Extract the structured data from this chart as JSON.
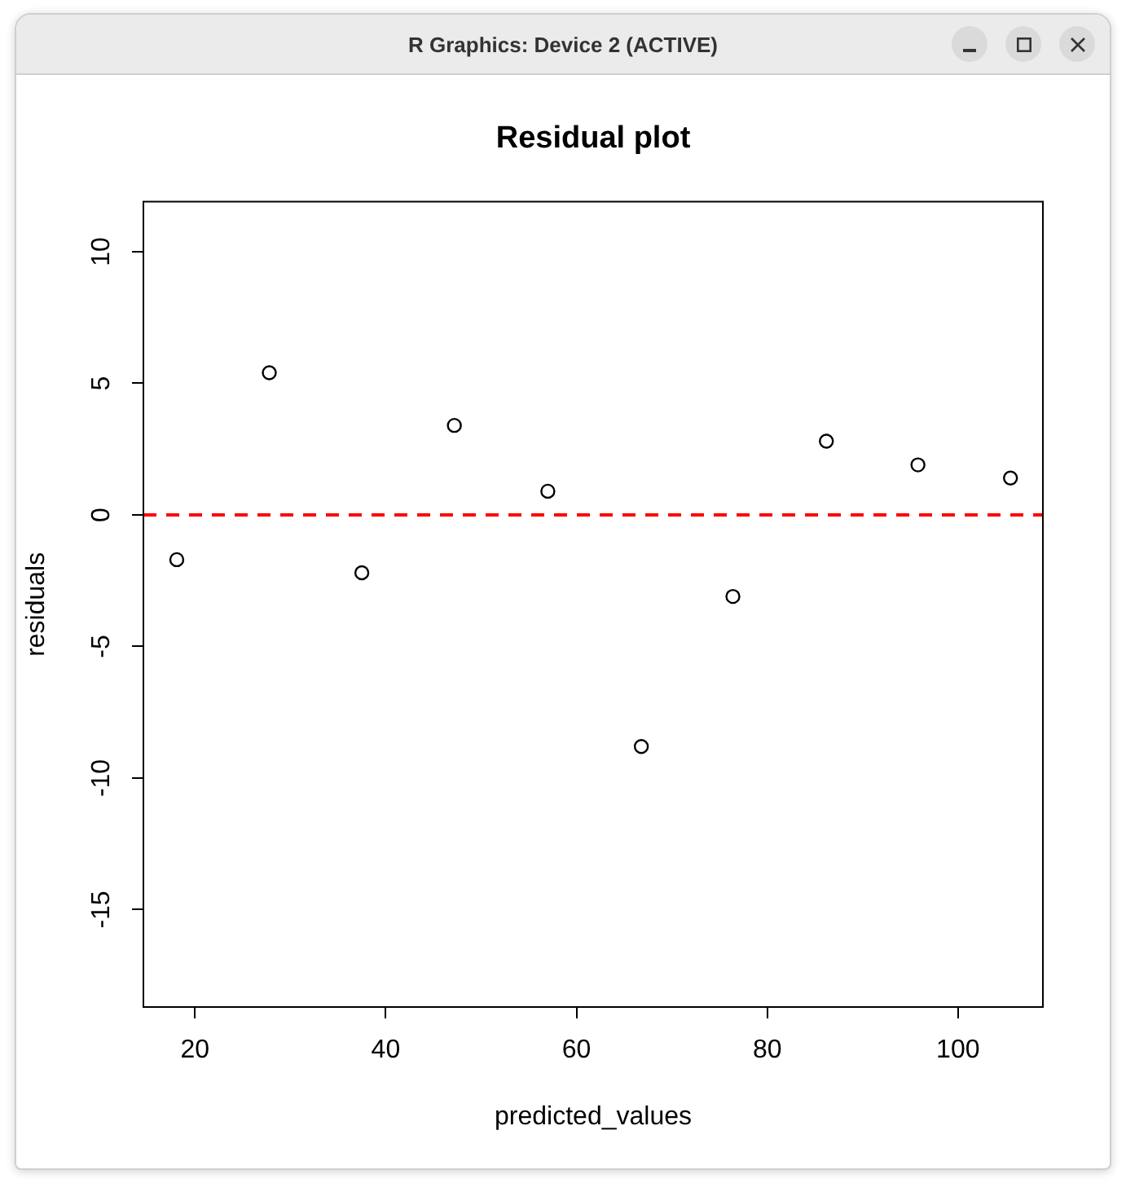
{
  "chart_data": {
    "type": "scatter",
    "title": "Residual plot",
    "xlabel": "predicted_values",
    "ylabel": "residuals",
    "annotations": [
      "R Graphics: Device 2 (ACTIVE)"
    ],
    "x": [
      18.1,
      27.8,
      37.5,
      47.2,
      57.0,
      66.8,
      76.4,
      86.2,
      95.8,
      105.5
    ],
    "values": [
      -1.7,
      5.4,
      -2.2,
      3.4,
      0.9,
      -8.8,
      -3.1,
      2.8,
      1.9,
      1.4
    ],
    "color": "#000000",
    "marker": "circle",
    "xlim": [
      14.6,
      108.9
    ],
    "xticks": [
      20,
      40,
      60,
      80,
      100
    ],
    "ylim": [
      -18.7,
      11.9
    ],
    "yticks": [
      -15,
      -10,
      -5,
      0,
      5,
      10
    ],
    "ref_lines": [
      {
        "axis": "y",
        "value": 0,
        "color": "#ff0000",
        "line_style": "dashed"
      }
    ]
  }
}
